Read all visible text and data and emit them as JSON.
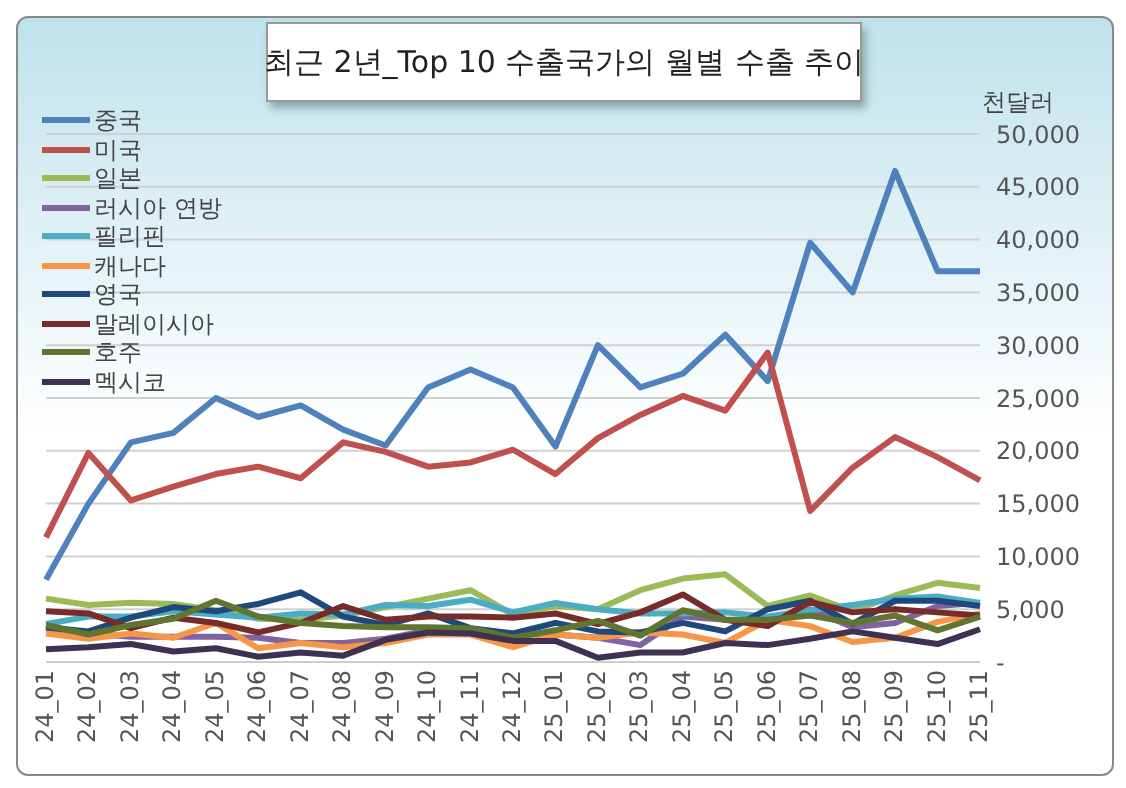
{
  "chart_data": {
    "type": "line",
    "title": "최근 2년_Top 10 수출국가의 월별 수출 추이",
    "ylabel": "천달러",
    "categories": [
      "24_01",
      "24_02",
      "24_03",
      "24_04",
      "24_05",
      "24_06",
      "24_07",
      "24_08",
      "24_09",
      "24_10",
      "24_11",
      "24_12",
      "25_01",
      "25_02",
      "25_03",
      "25_04",
      "25_05",
      "25_06",
      "25_07",
      "25_08",
      "25_09",
      "25_10",
      "25_11"
    ],
    "series": [
      {
        "name": "중국",
        "color": "#4f81bd",
        "values": [
          7800,
          15000,
          20800,
          21700,
          25000,
          23200,
          24300,
          22000,
          20500,
          26000,
          27700,
          26000,
          20400,
          30000,
          26000,
          27300,
          31000,
          26600,
          39700,
          35000,
          46500,
          37000,
          37000
        ]
      },
      {
        "name": "미국",
        "color": "#c0504d",
        "values": [
          11800,
          19800,
          15300,
          16600,
          17800,
          18500,
          17400,
          20800,
          19900,
          18500,
          18900,
          20100,
          17800,
          21200,
          23400,
          25200,
          23800,
          29300,
          14300,
          18400,
          21300,
          19400,
          17200
        ]
      },
      {
        "name": "일본",
        "color": "#9bbb59",
        "values": [
          6000,
          5400,
          5600,
          5500,
          4900,
          4100,
          4000,
          4400,
          5200,
          6000,
          6800,
          4500,
          5300,
          5000,
          6800,
          7900,
          8300,
          5300,
          6300,
          4800,
          6300,
          7500,
          7000
        ]
      },
      {
        "name": "러시아 연방",
        "color": "#8064a2",
        "values": [
          3200,
          2700,
          2400,
          2400,
          2400,
          2300,
          1800,
          1800,
          2200,
          3000,
          3000,
          2600,
          2600,
          2300,
          1600,
          4300,
          4000,
          3800,
          5000,
          3300,
          3700,
          5300,
          5600
        ]
      },
      {
        "name": "필리핀",
        "color": "#4bacc6",
        "values": [
          3600,
          4300,
          4300,
          4800,
          4500,
          4200,
          4600,
          4500,
          5400,
          5300,
          5900,
          4700,
          5600,
          5000,
          4600,
          4600,
          4700,
          4300,
          4900,
          5400,
          6000,
          6200,
          5600
        ]
      },
      {
        "name": "캐나다",
        "color": "#f79646",
        "values": [
          2700,
          2200,
          2700,
          2300,
          3700,
          1300,
          1800,
          1400,
          1800,
          2600,
          2600,
          1400,
          2600,
          2300,
          2800,
          2600,
          1800,
          4000,
          3400,
          1900,
          2300,
          3800,
          4600
        ]
      },
      {
        "name": "영국",
        "color": "#1f497d",
        "values": [
          3300,
          2900,
          4200,
          5200,
          4800,
          5500,
          6600,
          4300,
          3500,
          4600,
          3200,
          2700,
          3700,
          2900,
          2800,
          3700,
          2900,
          5000,
          5800,
          3600,
          5800,
          5800,
          5300
        ]
      },
      {
        "name": "말레이시아",
        "color": "#772c2a",
        "values": [
          4800,
          4600,
          3200,
          4200,
          3700,
          2800,
          3700,
          5300,
          4000,
          4300,
          4300,
          4200,
          4600,
          3600,
          4700,
          6400,
          4000,
          3400,
          5700,
          4700,
          5000,
          4700,
          4400
        ]
      },
      {
        "name": "호주",
        "color": "#5f7530",
        "values": [
          3500,
          2600,
          3500,
          4100,
          5800,
          4300,
          3700,
          3400,
          3300,
          3300,
          3200,
          2300,
          3000,
          3900,
          2500,
          4900,
          4000,
          4000,
          4400,
          3700,
          4400,
          3000,
          4300
        ]
      },
      {
        "name": "멕시코",
        "color": "#3f3151",
        "values": [
          1200,
          1400,
          1700,
          1000,
          1300,
          500,
          900,
          600,
          2100,
          2800,
          2700,
          2000,
          2000,
          400,
          900,
          900,
          1800,
          1600,
          2200,
          2900,
          2300,
          1700,
          3100
        ]
      }
    ],
    "ylim": [
      0,
      50000
    ],
    "yticks": [
      {
        "value": 0,
        "label": "-"
      },
      {
        "value": 5000,
        "label": "5,000"
      },
      {
        "value": 10000,
        "label": "10,000"
      },
      {
        "value": 15000,
        "label": "15,000"
      },
      {
        "value": 20000,
        "label": "20,000"
      },
      {
        "value": 25000,
        "label": "25,000"
      },
      {
        "value": 30000,
        "label": "30,000"
      },
      {
        "value": 35000,
        "label": "35,000"
      },
      {
        "value": 40000,
        "label": "40,000"
      },
      {
        "value": 45000,
        "label": "45,000"
      },
      {
        "value": 50000,
        "label": "50,000"
      }
    ],
    "grid": "y",
    "legend": "top left",
    "marker": "none",
    "line_style": "solid"
  }
}
